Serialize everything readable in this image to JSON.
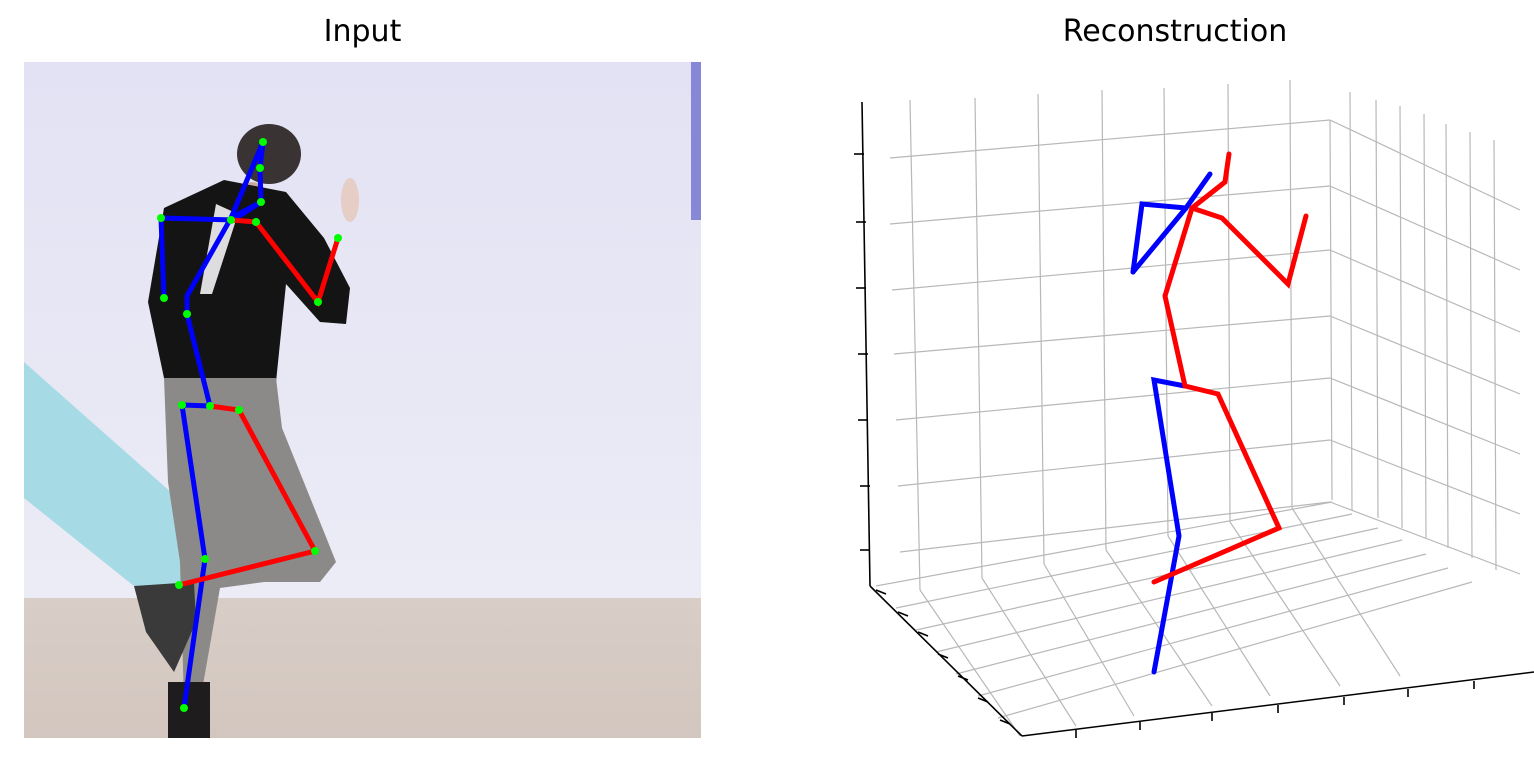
{
  "panels": {
    "input": {
      "title": "Input"
    },
    "reconstruction": {
      "title": "Reconstruction"
    }
  },
  "colors": {
    "left_limb": "#0000ff",
    "right_limb": "#ff0000",
    "joint": "#00ff00",
    "grid": "#b0b0b0",
    "axis": "#000000"
  }
}
